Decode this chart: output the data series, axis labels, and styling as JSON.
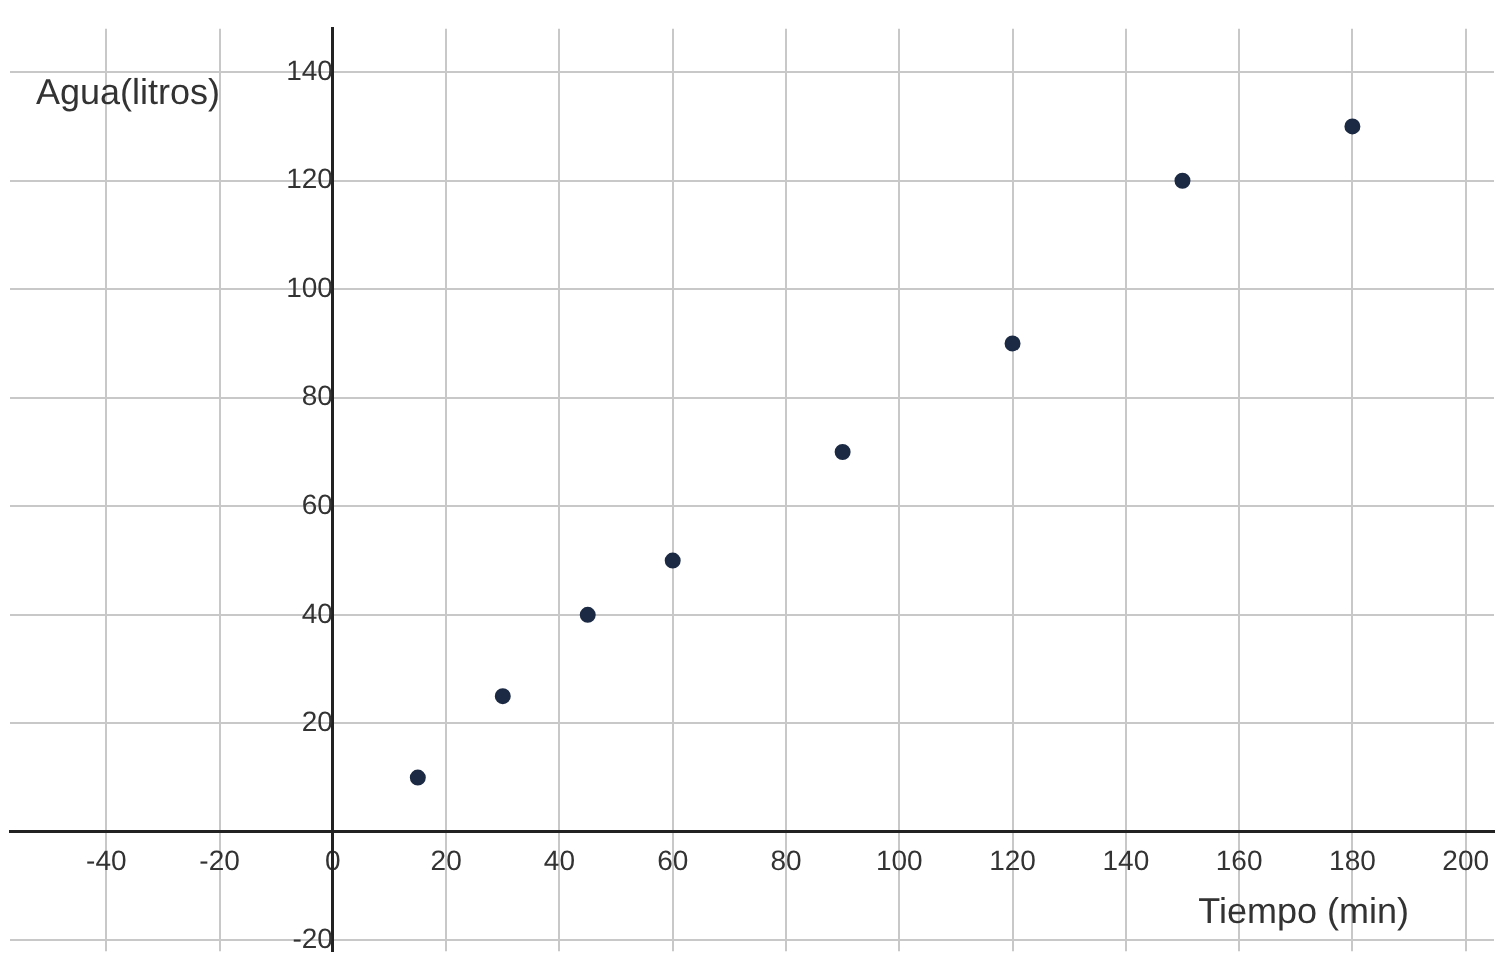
{
  "chart_data": {
    "type": "scatter",
    "xlabel": "Tiempo (min)",
    "ylabel": "Agua(litros)",
    "x": [
      15,
      30,
      45,
      60,
      90,
      120,
      150,
      180
    ],
    "values": [
      10,
      25,
      40,
      50,
      70,
      90,
      120,
      130
    ],
    "color": "#1c2a44",
    "xlim": [
      -57,
      205
    ],
    "ylim": [
      -22,
      148
    ],
    "xticks": [
      -40,
      -20,
      0,
      20,
      40,
      60,
      80,
      100,
      120,
      140,
      160,
      180,
      200
    ],
    "yticks": [
      -20,
      20,
      40,
      60,
      80,
      100,
      120,
      140
    ],
    "grid": true,
    "marker": "circle",
    "legend": false
  }
}
